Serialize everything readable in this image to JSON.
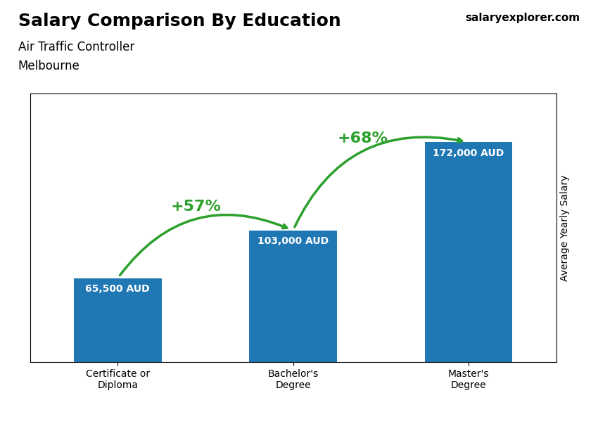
{
  "chart_data": {
    "type": "bar",
    "title": "Salary Comparison By Education",
    "subtitle": [
      "Air Traffic Controller",
      "Melbourne"
    ],
    "y_label": "Average Yearly Salary",
    "categories": [
      "Certificate or\nDiploma",
      "Bachelor's\nDegree",
      "Master's\nDegree"
    ],
    "values": [
      65500,
      103000,
      172000
    ],
    "value_labels": [
      "65,500 AUD",
      "103,000 AUD",
      "172,000 AUD"
    ],
    "data_labels": true,
    "ylim": [
      0,
      210000
    ],
    "tick_labels": "x",
    "grid": false,
    "annotations": [
      {
        "text": "+57%",
        "from": "Certificate or\nDiploma",
        "to": "Bachelor's\nDegree"
      },
      {
        "text": "+68%",
        "from": "Bachelor's\nDegree",
        "to": "Master's\nDegree"
      },
      {
        "text": "salaryexplorer.com"
      }
    ]
  }
}
